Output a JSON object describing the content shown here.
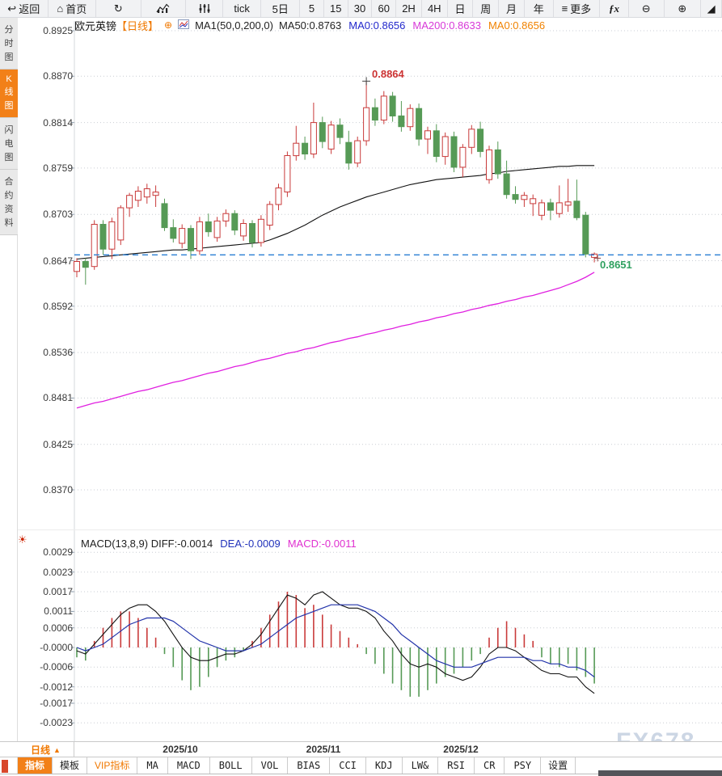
{
  "toolbar": {
    "items": [
      {
        "name": "back",
        "icon": "↩",
        "label": "返回"
      },
      {
        "name": "home",
        "icon": "⌂",
        "label": "首页"
      },
      {
        "name": "refresh",
        "icon": "↻",
        "label": ""
      },
      {
        "name": "bar-chart",
        "icon": "svg:bars",
        "label": ""
      },
      {
        "name": "candle-settings",
        "icon": "svg:sliders",
        "label": ""
      },
      {
        "name": "tick",
        "icon": "",
        "label": "tick"
      },
      {
        "name": "5d",
        "icon": "",
        "label": "5日"
      },
      {
        "name": "5",
        "icon": "",
        "label": "5"
      },
      {
        "name": "15",
        "icon": "",
        "label": "15"
      },
      {
        "name": "30",
        "icon": "",
        "label": "30"
      },
      {
        "name": "60",
        "icon": "",
        "label": "60"
      },
      {
        "name": "2h",
        "icon": "",
        "label": "2H"
      },
      {
        "name": "4h",
        "icon": "",
        "label": "4H"
      },
      {
        "name": "day",
        "icon": "",
        "label": "日"
      },
      {
        "name": "week",
        "icon": "",
        "label": "周"
      },
      {
        "name": "month",
        "icon": "",
        "label": "月"
      },
      {
        "name": "year",
        "icon": "",
        "label": "年"
      },
      {
        "name": "more",
        "icon": "≡",
        "label": "更多"
      },
      {
        "name": "fx",
        "icon": "",
        "label": "ƒx"
      },
      {
        "name": "zoom-out",
        "icon": "⊖",
        "label": ""
      },
      {
        "name": "zoom-in",
        "icon": "⊕",
        "label": ""
      },
      {
        "name": "draw",
        "icon": "◢",
        "label": ""
      }
    ]
  },
  "sidebar": {
    "tabs": [
      {
        "label": "分时图",
        "active": false
      },
      {
        "label": "K线图",
        "active": true
      },
      {
        "label": "闪电图",
        "active": false
      },
      {
        "label": "合约资料",
        "active": false
      }
    ]
  },
  "header": {
    "title": "欧元英镑",
    "period_tag": "【日线】",
    "plus_icon": "⊕",
    "ma_summary": "MA1(50,0,200,0)",
    "ma_values": [
      {
        "label": "MA50:0.8763",
        "color": "#222222"
      },
      {
        "label": "MA0:0.8656",
        "color": "#2228cc"
      },
      {
        "label": "MA200:0.8633",
        "color": "#d838d8"
      },
      {
        "label": "MA0:0.8656",
        "color": "#f08200"
      }
    ]
  },
  "main_chart": {
    "high_label": "0.8864",
    "last_label": "0.8651"
  },
  "macd_panel": {
    "settings_icon": "☀",
    "values": [
      {
        "label": "MACD(13,8,9) DIFF:-0.0014",
        "color": "#222222"
      },
      {
        "label": "DEA:-0.0009",
        "color": "#2233bb"
      },
      {
        "label": "MACD:-0.0011",
        "color": "#e030d0"
      }
    ]
  },
  "xaxis": {
    "period": "日线",
    "triangle": "▲",
    "dates": [
      "2025/10",
      "2025/11",
      "2025/12"
    ]
  },
  "bottom_tabs": [
    {
      "label": "指标",
      "active": true
    },
    {
      "label": "模板"
    },
    {
      "label": "VIP指标",
      "vip": true
    },
    {
      "label": "MA",
      "mono": true
    },
    {
      "label": "MACD",
      "mono": true
    },
    {
      "label": "BOLL",
      "mono": true
    },
    {
      "label": "VOL",
      "mono": true
    },
    {
      "label": "BIAS",
      "mono": true
    },
    {
      "label": "CCI",
      "mono": true
    },
    {
      "label": "KDJ",
      "mono": true
    },
    {
      "label": "LW&",
      "mono": true
    },
    {
      "label": "RSI",
      "mono": true
    },
    {
      "label": "CR",
      "mono": true
    },
    {
      "label": "PSY",
      "mono": true
    },
    {
      "label": "设置"
    }
  ],
  "watermark": "FX678",
  "colors": {
    "up": "#c93a3a",
    "down": "#569a56",
    "ma50": "#111111",
    "ma200": "#e020e0",
    "price_line": "#2a7fd4",
    "grid": "#c9ced4",
    "high_label": "#cc3333",
    "last_label": "#2fa05f",
    "diff": "#111111",
    "dea": "#2233aa",
    "accent": "#f28018"
  },
  "chart_data": [
    {
      "type": "candlestick",
      "title": "欧元英镑 日线",
      "ylim": [
        0.837,
        0.8925
      ],
      "y_ticks": [
        {
          "label": "0.8925",
          "value": 0.8925
        },
        {
          "label": "0.8870",
          "value": 0.887
        },
        {
          "label": "0.8814",
          "value": 0.8814
        },
        {
          "label": "0.8759",
          "value": 0.8759
        },
        {
          "label": "0.8703",
          "value": 0.8703
        },
        {
          "label": "0.8647",
          "value": 0.8647
        },
        {
          "label": "0.8592",
          "value": 0.8592
        },
        {
          "label": "0.8536",
          "value": 0.8536
        },
        {
          "label": "0.8481",
          "value": 0.8481
        },
        {
          "label": "0.8425",
          "value": 0.8425
        },
        {
          "label": "0.8370",
          "value": 0.837
        }
      ],
      "x_dates": [
        "2025/10",
        "2025/11",
        "2025/12"
      ],
      "high_marker": {
        "value": 0.8864,
        "index": 34
      },
      "last_price": 0.8651,
      "price_line": 0.8654,
      "candles": [
        [
          0.8634,
          0.865,
          0.8627,
          0.8646
        ],
        [
          0.8646,
          0.865,
          0.8618,
          0.8639
        ],
        [
          0.864,
          0.8696,
          0.8636,
          0.8691
        ],
        [
          0.8691,
          0.8696,
          0.8654,
          0.8661
        ],
        [
          0.8661,
          0.8699,
          0.8649,
          0.8694
        ],
        [
          0.8672,
          0.8714,
          0.8666,
          0.8711
        ],
        [
          0.8711,
          0.8729,
          0.87,
          0.8726
        ],
        [
          0.872,
          0.8737,
          0.8712,
          0.8731
        ],
        [
          0.8724,
          0.874,
          0.8716,
          0.8734
        ],
        [
          0.8726,
          0.8738,
          0.8712,
          0.873
        ],
        [
          0.8716,
          0.8722,
          0.8683,
          0.8687
        ],
        [
          0.8687,
          0.8697,
          0.8669,
          0.8674
        ],
        [
          0.8668,
          0.8691,
          0.8662,
          0.8686
        ],
        [
          0.8686,
          0.869,
          0.8649,
          0.8659
        ],
        [
          0.8659,
          0.87,
          0.8654,
          0.8694
        ],
        [
          0.8694,
          0.8704,
          0.8676,
          0.8682
        ],
        [
          0.8675,
          0.87,
          0.867,
          0.8695
        ],
        [
          0.8695,
          0.8709,
          0.8688,
          0.8704
        ],
        [
          0.8704,
          0.8708,
          0.8678,
          0.8684
        ],
        [
          0.8677,
          0.8697,
          0.8671,
          0.8692
        ],
        [
          0.8692,
          0.8696,
          0.8663,
          0.8669
        ],
        [
          0.8669,
          0.8702,
          0.8664,
          0.8697
        ],
        [
          0.869,
          0.8719,
          0.8684,
          0.8715
        ],
        [
          0.8715,
          0.874,
          0.8708,
          0.8735
        ],
        [
          0.873,
          0.8779,
          0.8724,
          0.8774
        ],
        [
          0.8774,
          0.881,
          0.8768,
          0.8789
        ],
        [
          0.8789,
          0.8797,
          0.8769,
          0.8776
        ],
        [
          0.8776,
          0.8838,
          0.8771,
          0.8814
        ],
        [
          0.8814,
          0.8821,
          0.8783,
          0.8791
        ],
        [
          0.8782,
          0.8816,
          0.8776,
          0.8811
        ],
        [
          0.8811,
          0.8819,
          0.8788,
          0.8796
        ],
        [
          0.879,
          0.8804,
          0.8757,
          0.8765
        ],
        [
          0.8765,
          0.8797,
          0.876,
          0.8792
        ],
        [
          0.8792,
          0.8864,
          0.8786,
          0.8832
        ],
        [
          0.8832,
          0.8843,
          0.881,
          0.8817
        ],
        [
          0.8817,
          0.8852,
          0.8812,
          0.8846
        ],
        [
          0.8846,
          0.8851,
          0.8815,
          0.8822
        ],
        [
          0.8822,
          0.884,
          0.8803,
          0.8809
        ],
        [
          0.8809,
          0.8836,
          0.8804,
          0.8831
        ],
        [
          0.8831,
          0.8837,
          0.8786,
          0.8794
        ],
        [
          0.8794,
          0.8809,
          0.8776,
          0.8804
        ],
        [
          0.8804,
          0.8812,
          0.8766,
          0.8773
        ],
        [
          0.8773,
          0.8802,
          0.8763,
          0.8797
        ],
        [
          0.8797,
          0.8803,
          0.8754,
          0.876
        ],
        [
          0.876,
          0.8788,
          0.8748,
          0.8784
        ],
        [
          0.8784,
          0.8811,
          0.8776,
          0.8806
        ],
        [
          0.8806,
          0.8815,
          0.8772,
          0.8779
        ],
        [
          0.8745,
          0.8786,
          0.874,
          0.8781
        ],
        [
          0.8781,
          0.8791,
          0.8746,
          0.8752
        ],
        [
          0.8752,
          0.8768,
          0.8722,
          0.8727
        ],
        [
          0.8727,
          0.8737,
          0.8716,
          0.8721
        ],
        [
          0.8721,
          0.873,
          0.8712,
          0.8726
        ],
        [
          0.8716,
          0.8727,
          0.8701,
          0.8722
        ],
        [
          0.8702,
          0.8721,
          0.8696,
          0.8717
        ],
        [
          0.8717,
          0.8722,
          0.8696,
          0.8708
        ],
        [
          0.8704,
          0.8738,
          0.8699,
          0.8717
        ],
        [
          0.8714,
          0.8746,
          0.8706,
          0.8718
        ],
        [
          0.8719,
          0.8745,
          0.8696,
          0.8699
        ],
        [
          0.8702,
          0.8706,
          0.8651,
          0.8655
        ],
        [
          0.8651,
          0.8657,
          0.8645,
          0.8655
        ]
      ],
      "ma50": [
        0.8649,
        0.865,
        0.8651,
        0.8652,
        0.8653,
        0.8654,
        0.8655,
        0.8656,
        0.8657,
        0.8658,
        0.8659,
        0.866,
        0.866,
        0.8661,
        0.8662,
        0.8663,
        0.8664,
        0.8665,
        0.8666,
        0.8667,
        0.8668,
        0.8669,
        0.8672,
        0.8676,
        0.868,
        0.8685,
        0.869,
        0.8696,
        0.8702,
        0.8707,
        0.8712,
        0.8716,
        0.872,
        0.8724,
        0.8727,
        0.873,
        0.8733,
        0.8736,
        0.8739,
        0.8741,
        0.8743,
        0.8745,
        0.8746,
        0.8747,
        0.8748,
        0.8749,
        0.875,
        0.8752,
        0.8753,
        0.8755,
        0.8756,
        0.8757,
        0.8758,
        0.8759,
        0.876,
        0.8761,
        0.8761,
        0.8762,
        0.8762,
        0.8762
      ],
      "ma200": [
        0.8469,
        0.8472,
        0.8475,
        0.8477,
        0.848,
        0.8483,
        0.8486,
        0.8489,
        0.8491,
        0.8494,
        0.8497,
        0.85,
        0.8502,
        0.8505,
        0.8508,
        0.8511,
        0.8513,
        0.8516,
        0.8519,
        0.8521,
        0.8524,
        0.8527,
        0.8529,
        0.8532,
        0.8535,
        0.8537,
        0.854,
        0.8542,
        0.8545,
        0.8548,
        0.855,
        0.8553,
        0.8555,
        0.8558,
        0.856,
        0.8563,
        0.8565,
        0.8568,
        0.857,
        0.8573,
        0.8575,
        0.8578,
        0.858,
        0.8583,
        0.8585,
        0.8588,
        0.859,
        0.8593,
        0.8595,
        0.8598,
        0.86,
        0.8603,
        0.8605,
        0.8608,
        0.8611,
        0.8614,
        0.8618,
        0.8622,
        0.8627,
        0.8633
      ]
    },
    {
      "type": "macd",
      "title": "MACD(13,8,9)",
      "ylim": [
        -0.0023,
        0.0029
      ],
      "y_ticks": [
        {
          "label": "0.0029",
          "value": 0.0029
        },
        {
          "label": "0.0023",
          "value": 0.0023
        },
        {
          "label": "0.0017",
          "value": 0.0017
        },
        {
          "label": "0.0011",
          "value": 0.0011
        },
        {
          "label": "0.0006",
          "value": 0.0006
        },
        {
          "label": "-0.0000",
          "value": 0.0
        },
        {
          "label": "-0.0006",
          "value": -0.0006
        },
        {
          "label": "-0.0012",
          "value": -0.0012
        },
        {
          "label": "-0.0017",
          "value": -0.0017
        },
        {
          "label": "-0.0023",
          "value": -0.0023
        }
      ],
      "histogram": [
        -0.0003,
        -0.0004,
        0.0002,
        0.0006,
        0.0009,
        0.0011,
        0.0011,
        0.0009,
        0.0006,
        0.0003,
        -0.0002,
        -0.0006,
        -0.001,
        -0.0013,
        -0.0012,
        -0.0009,
        -0.0006,
        -0.0004,
        -0.0003,
        -0.0001,
        0.0002,
        0.0006,
        0.001,
        0.0014,
        0.0017,
        0.0016,
        0.0012,
        0.0013,
        0.001,
        0.0007,
        0.0005,
        0.0003,
        0.0001,
        -0.0002,
        -0.0005,
        -0.0008,
        -0.0011,
        -0.0013,
        -0.0015,
        -0.0015,
        -0.0013,
        -0.0011,
        -0.0009,
        -0.0008,
        -0.0006,
        -0.0004,
        -0.0002,
        0.0003,
        0.0006,
        0.0008,
        0.0006,
        0.0004,
        0.0002,
        -0.0003,
        -0.0005,
        -0.0006,
        -0.0005,
        -0.0007,
        -0.0009,
        -0.0011
      ],
      "diff": [
        -0.0001,
        -0.0002,
        0.0001,
        0.0004,
        0.0007,
        0.001,
        0.0012,
        0.0013,
        0.0013,
        0.0011,
        0.0008,
        0.0004,
        0.0,
        -0.0003,
        -0.0004,
        -0.0004,
        -0.0003,
        -0.0002,
        -0.0002,
        -0.0001,
        0.0001,
        0.0004,
        0.0008,
        0.0012,
        0.0016,
        0.0015,
        0.0013,
        0.0016,
        0.0017,
        0.0015,
        0.0013,
        0.0012,
        0.0012,
        0.0011,
        0.0009,
        0.0005,
        0.0002,
        -0.0002,
        -0.0005,
        -0.0006,
        -0.0005,
        -0.0006,
        -0.0008,
        -0.0009,
        -0.001,
        -0.0009,
        -0.0006,
        -0.0002,
        0.0,
        0.0,
        -0.0001,
        -0.0003,
        -0.0005,
        -0.0007,
        -0.0008,
        -0.0008,
        -0.0009,
        -0.0009,
        -0.0012,
        -0.0014
      ],
      "dea": [
        0.0,
        -0.0001,
        0.0,
        0.0001,
        0.0003,
        0.0005,
        0.0007,
        0.0008,
        0.0009,
        0.0009,
        0.0009,
        0.0008,
        0.0006,
        0.0004,
        0.0002,
        0.0001,
        0.0,
        -0.0001,
        -0.0001,
        -0.0001,
        0.0,
        0.0001,
        0.0003,
        0.0005,
        0.0007,
        0.0009,
        0.001,
        0.0011,
        0.0012,
        0.0013,
        0.0013,
        0.0013,
        0.0013,
        0.0012,
        0.0011,
        0.0009,
        0.0007,
        0.0004,
        0.0002,
        0.0,
        -0.0002,
        -0.0004,
        -0.0005,
        -0.0006,
        -0.0006,
        -0.0006,
        -0.0005,
        -0.0004,
        -0.0003,
        -0.0003,
        -0.0003,
        -0.0003,
        -0.0004,
        -0.0004,
        -0.0005,
        -0.0005,
        -0.0006,
        -0.0006,
        -0.0007,
        -0.0009
      ]
    }
  ]
}
